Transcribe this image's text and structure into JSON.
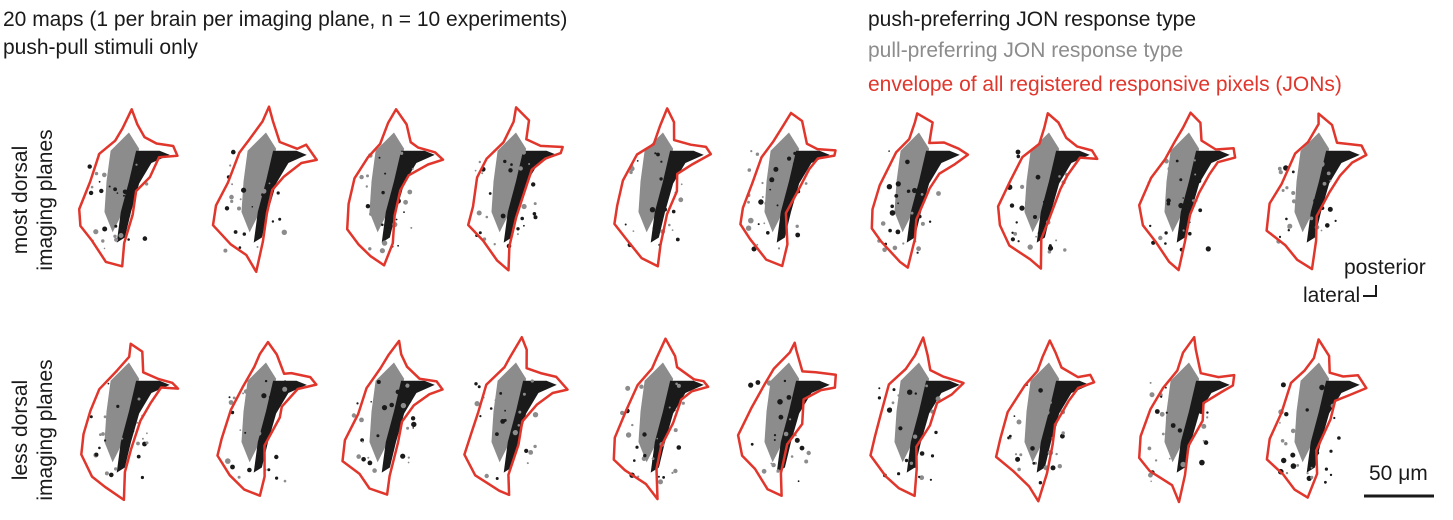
{
  "header": {
    "title_line1": "20 maps (1 per brain per imaging plane, n = 10 experiments)",
    "title_line2": "push-pull stimuli only"
  },
  "legend": {
    "push": {
      "label": "push-preferring JON response type",
      "color": "#1a1a1a"
    },
    "pull": {
      "label": "pull-preferring JON response type",
      "color": "#8c8c8c"
    },
    "envelope": {
      "label": "envelope of all registered responsive pixels (JONs)",
      "color": "#e0362c"
    }
  },
  "rows": [
    {
      "label_line1": "most dorsal",
      "label_line2": "imaging planes"
    },
    {
      "label_line1": "less dorsal",
      "label_line2": "imaging planes"
    }
  ],
  "orientation": {
    "posterior": "posterior",
    "lateral": "lateral"
  },
  "scale_bar": {
    "label": "50 μm"
  },
  "maps_per_row": 10
}
